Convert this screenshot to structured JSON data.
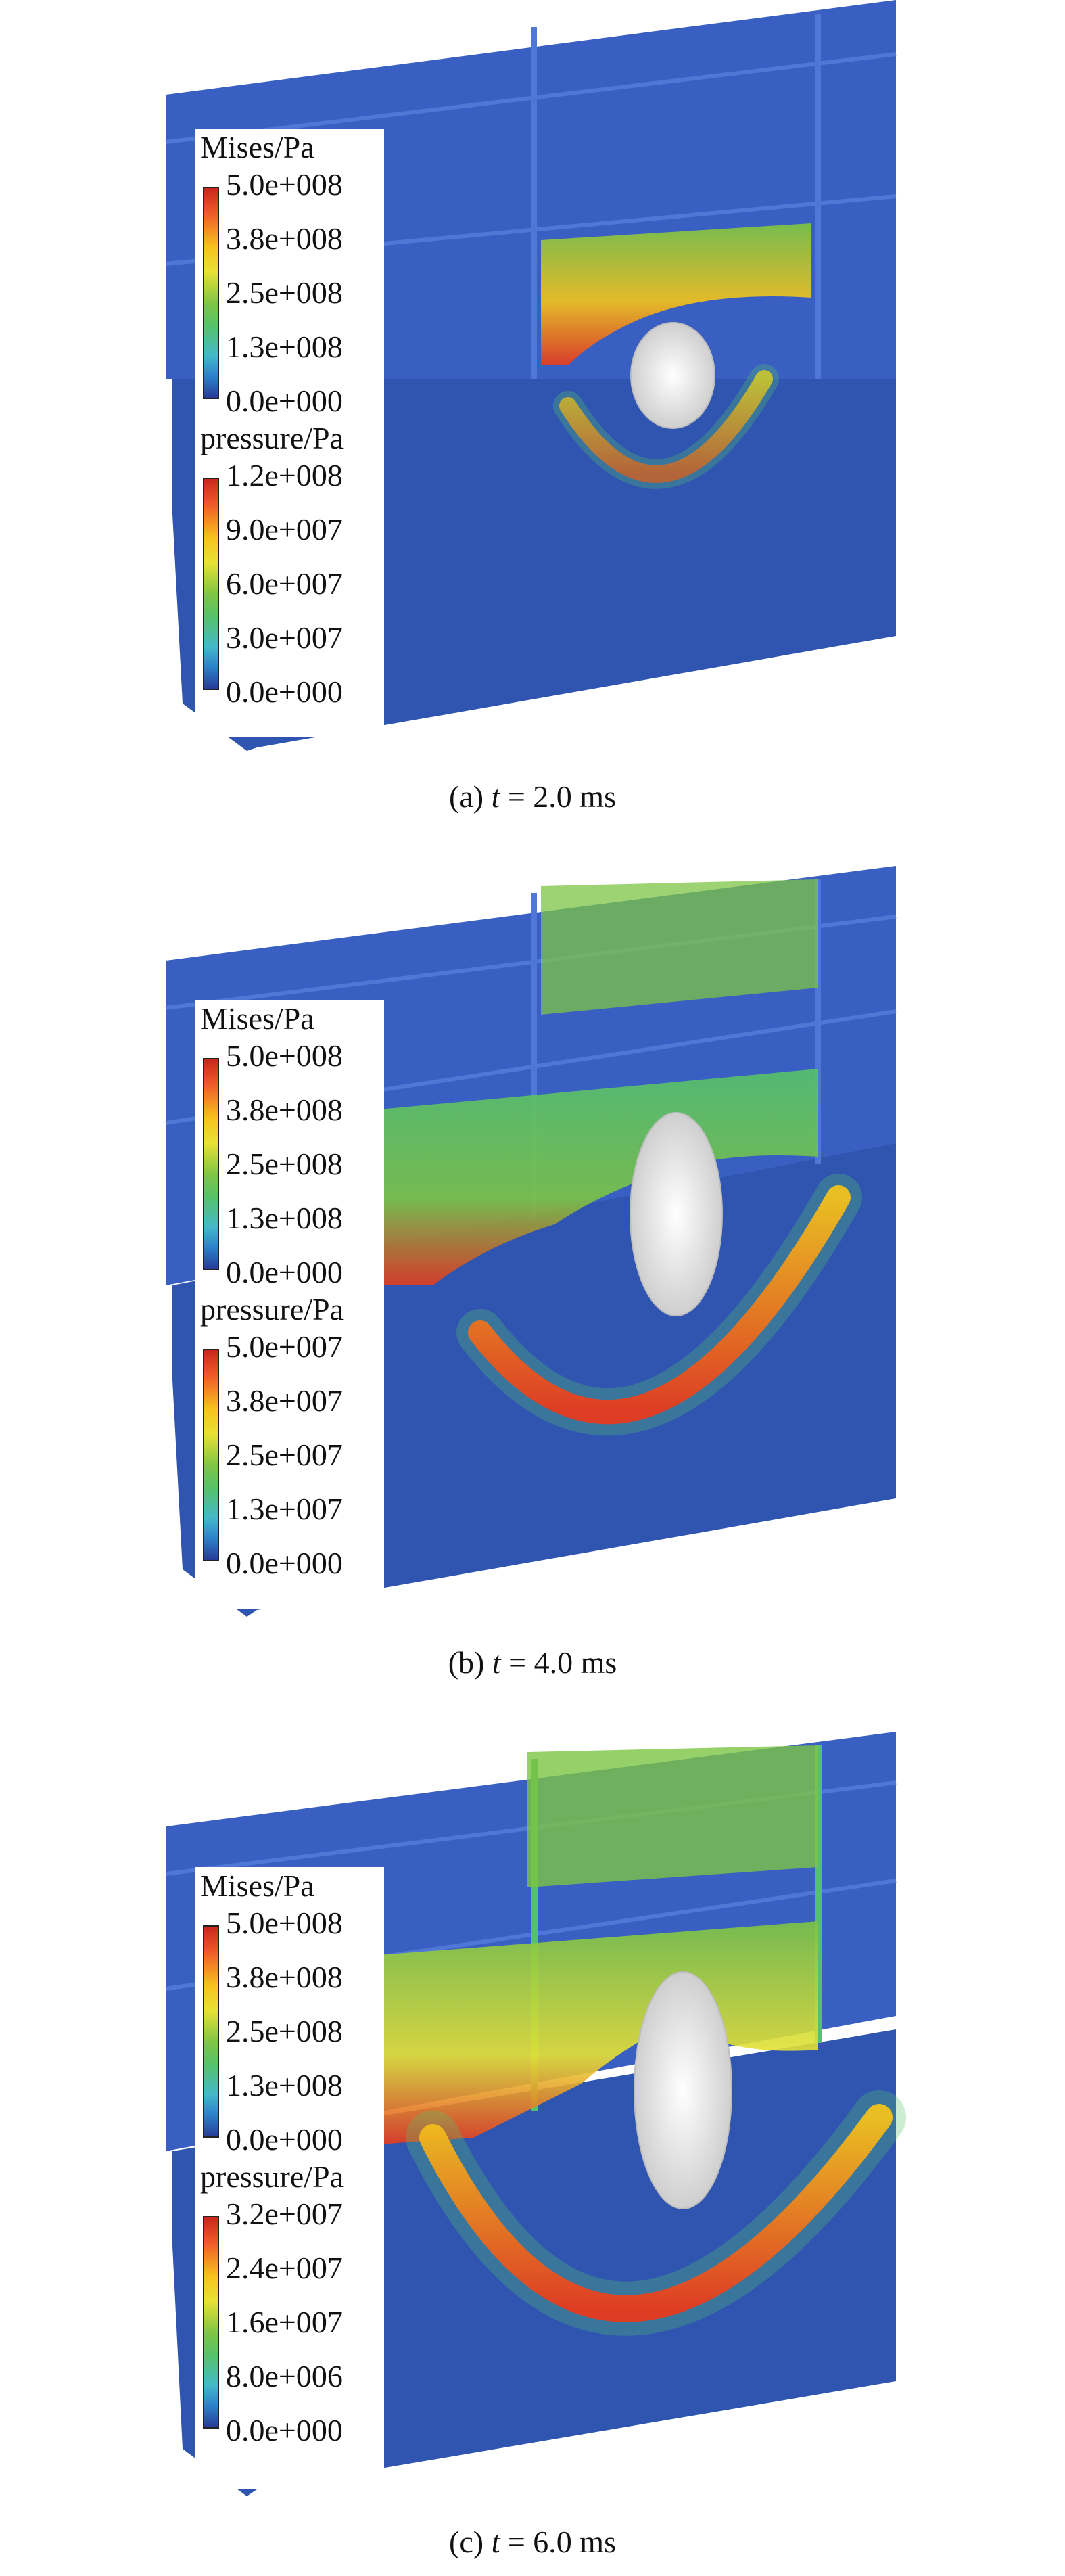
{
  "panels": [
    {
      "legend": {
        "mises_title": "Mises/Pa",
        "mises_ticks": [
          "5.0e+008",
          "3.8e+008",
          "2.5e+008",
          "1.3e+008",
          "0.0e+000"
        ],
        "pressure_title": "pressure/Pa",
        "pressure_ticks": [
          "1.2e+008",
          "9.0e+007",
          "6.0e+007",
          "3.0e+007",
          "0.0e+000"
        ]
      },
      "caption": {
        "label": "(a) ",
        "var": "t",
        "rest": " = 2.0 ms"
      }
    },
    {
      "legend": {
        "mises_title": "Mises/Pa",
        "mises_ticks": [
          "5.0e+008",
          "3.8e+008",
          "2.5e+008",
          "1.3e+008",
          "0.0e+000"
        ],
        "pressure_title": "pressure/Pa",
        "pressure_ticks": [
          "5.0e+007",
          "3.8e+007",
          "2.5e+007",
          "1.3e+007",
          "0.0e+000"
        ]
      },
      "caption": {
        "label": "(b) ",
        "var": "t",
        "rest": " = 4.0 ms"
      }
    },
    {
      "legend": {
        "mises_title": "Mises/Pa",
        "mises_ticks": [
          "5.0e+008",
          "3.8e+008",
          "2.5e+008",
          "1.3e+008",
          "0.0e+000"
        ],
        "pressure_title": "pressure/Pa",
        "pressure_ticks": [
          "3.2e+007",
          "2.4e+007",
          "1.6e+007",
          "8.0e+006",
          "0.0e+000"
        ]
      },
      "caption": {
        "label": "(c) ",
        "var": "t",
        "rest": " = 6.0 ms"
      }
    }
  ],
  "colors": {
    "water_blue": "#2f55b0",
    "structure_blue": "#3a5fc2",
    "high_red": "#e63a1e",
    "mid_yellow": "#f2c21c",
    "mid_green": "#7cc444",
    "low_cyan": "#3fb8c8",
    "bubble_white": "#f2f2f2"
  }
}
